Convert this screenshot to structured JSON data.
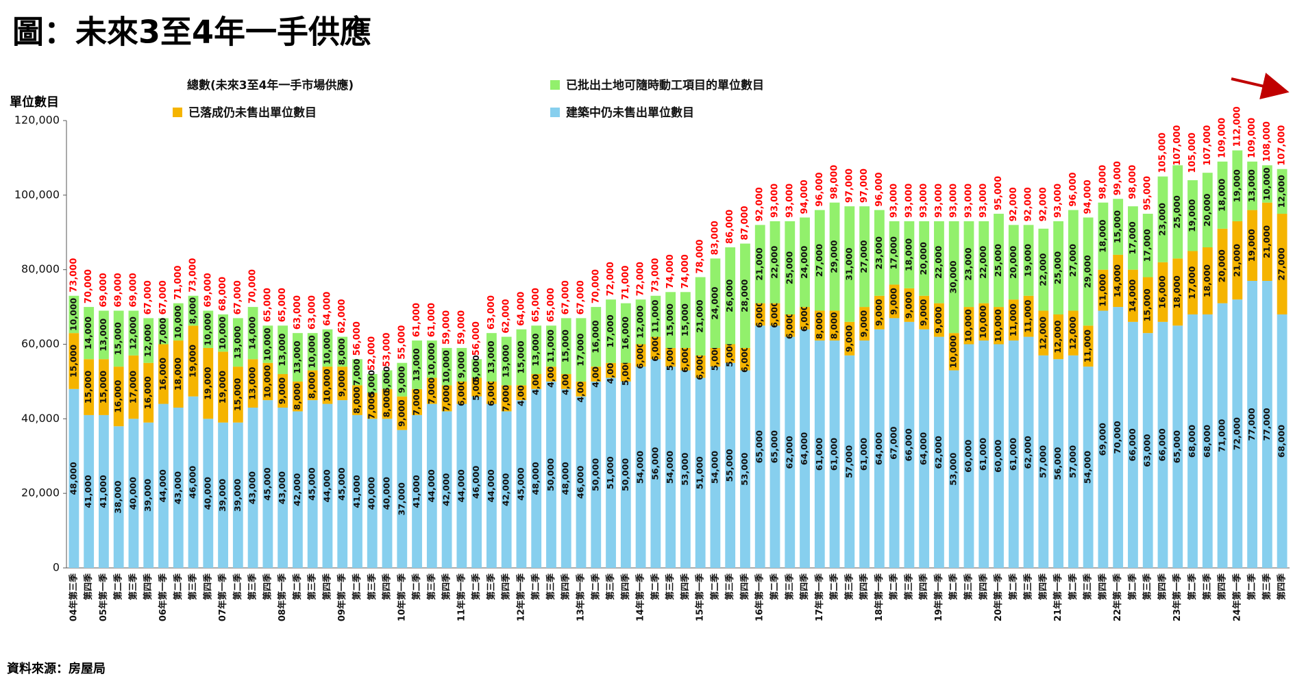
{
  "chart_data": {
    "type": "stacked_bar",
    "title": "圖：未來3至4年一手供應",
    "y_label": "單位數目",
    "source": "資料來源：房屋局",
    "categories": [
      "04年第三季",
      "第四季",
      "05年第一季",
      "第二季",
      "第三季",
      "第四季",
      "06年第一季",
      "第二季",
      "第三季",
      "第四季",
      "07年第一季",
      "第二季",
      "第三季",
      "第四季",
      "08年第一季",
      "第二季",
      "第三季",
      "第四季",
      "09年第一季",
      "第二季",
      "第三季",
      "第四季",
      "10年第一季",
      "第二季",
      "第三季",
      "第四季",
      "11年第一季",
      "第二季",
      "第三季",
      "第四季",
      "12年第一季",
      "第二季",
      "第三季",
      "第四季",
      "13年第一季",
      "第二季",
      "第三季",
      "第四季",
      "14年第一季",
      "第二季",
      "第三季",
      "第四季",
      "15年第一季",
      "第二季",
      "第三季",
      "第四季",
      "16年第一季",
      "第二季",
      "第三季",
      "第四季",
      "17年第一季",
      "第二季",
      "第三季",
      "第四季",
      "18年第一季",
      "第二季",
      "第三季",
      "第四季",
      "19年第一季",
      "第二季",
      "第三季",
      "第四季",
      "20年第一季",
      "第二季",
      "第三季",
      "第四季",
      "21年第一季",
      "第二季",
      "第三季",
      "第四季",
      "22年第一季",
      "第二季",
      "第三季",
      "第四季",
      "23年第一季",
      "第二季",
      "第三季",
      "第四季",
      "24年第一季",
      "第二季",
      "第三季",
      "第四季"
    ],
    "series": [
      {
        "name": "建築中仍未售出單位數目",
        "color": "#87cfee",
        "values": [
          48000,
          41000,
          41000,
          38000,
          40000,
          39000,
          44000,
          43000,
          46000,
          40000,
          39000,
          39000,
          43000,
          45000,
          43000,
          42000,
          45000,
          44000,
          45000,
          41000,
          40000,
          40000,
          37000,
          41000,
          44000,
          42000,
          44000,
          46000,
          44000,
          42000,
          45000,
          48000,
          50000,
          48000,
          46000,
          50000,
          51000,
          50000,
          54000,
          56000,
          54000,
          53000,
          51000,
          54000,
          55000,
          53000,
          65000,
          65000,
          62000,
          64000,
          61000,
          61000,
          57000,
          61000,
          64000,
          67000,
          66000,
          64000,
          62000,
          53000,
          60000,
          61000,
          60000,
          61000,
          62000,
          57000,
          56000,
          57000,
          54000,
          69000,
          70000,
          66000,
          63000,
          66000,
          65000,
          68000,
          68000,
          71000,
          72000,
          77000,
          77000,
          68000
        ],
        "value_labels": [
          "48,000",
          "41,000",
          "41,000",
          "38,000",
          "40,000",
          "39,000",
          "44,000",
          "43,000",
          "46,000",
          "40,000",
          "39,000",
          "39,000",
          "43,000",
          "45,000",
          "43,000",
          "42,000",
          "45,000",
          "44,000",
          "45,000",
          "41,000",
          "40,000",
          "40,000",
          "37,000",
          "41,000",
          "44,000",
          "42,000",
          "44,000",
          "46,000",
          "44,000",
          "42,000",
          "45,000",
          "48,000",
          "50,000",
          "48,000",
          "46,000",
          "50,000",
          "51,000",
          "50,000",
          "54,000",
          "56,000",
          "54,000",
          "53,000",
          "51,000",
          "54,000",
          "55,000",
          "53,000",
          "65,000",
          "65,000",
          "62,000",
          "64,000",
          "61,000",
          "61,000",
          "57,000",
          "61,000",
          "64,000",
          "67,000",
          "66,000",
          "64,000",
          "62,000",
          "53,000",
          "60,000",
          "61,000",
          "60,000",
          "61,000",
          "62,000",
          "57,000",
          "56,000",
          "57,000",
          "54,000",
          "69,000",
          "70,000",
          "66,000",
          "63,000",
          "66,000",
          "65,000",
          "68,000",
          "68,000",
          "71,000",
          "72,000",
          "77,000",
          "77,000",
          "68,000"
        ]
      },
      {
        "name": "已落成仍未售出單位數目",
        "color": "#f5b400",
        "values": [
          15000,
          15000,
          15000,
          16000,
          17000,
          16000,
          16000,
          18000,
          19000,
          19000,
          19000,
          15000,
          13000,
          10000,
          9000,
          8000,
          8000,
          10000,
          9000,
          8000,
          7000,
          8000,
          9000,
          7000,
          7000,
          7000,
          6000,
          5000,
          6000,
          7000,
          4000,
          4000,
          4000,
          4000,
          4000,
          4000,
          4000,
          5000,
          6000,
          6000,
          5000,
          6000,
          6000,
          5000,
          5000,
          6000,
          6000,
          6000,
          6000,
          6000,
          8000,
          8000,
          9000,
          9000,
          9000,
          9000,
          9000,
          9000,
          9000,
          10000,
          10000,
          10000,
          10000,
          11000,
          11000,
          12000,
          12000,
          12000,
          11000,
          11000,
          14000,
          14000,
          15000,
          16000,
          18000,
          17000,
          18000,
          20000,
          21000,
          19000,
          21000,
          27000
        ],
        "value_labels": [
          "15,000",
          "15,000",
          "15,000",
          "16,000",
          "17,000",
          "16,000",
          "16,000",
          "18,000",
          "19,000",
          "19,000",
          "19,000",
          "15,000",
          "13,000",
          "10,000",
          "9,000",
          "8,000",
          "8,000",
          "10,000",
          "9,000",
          "8,000",
          "7,000",
          "8,000",
          "9,000",
          "7,000",
          "7,000",
          "7,000",
          "6,000",
          "5,000",
          "6,000",
          "7,000",
          "4,000",
          "4,000",
          "4,000",
          "4,000",
          "4,000",
          "4,000",
          "4,000",
          "5,000",
          "6,000",
          "6,000",
          "5,000",
          "6,000",
          "6,000",
          "5,000",
          "5,000",
          "6,000",
          "6,000",
          "6,000",
          "6,000",
          "6,000",
          "8,000",
          "8,000",
          "9,000",
          "9,000",
          "9,000",
          "9,000",
          "9,000",
          "9,000",
          "9,000",
          "10,000",
          "10,000",
          "10,000",
          "10,000",
          "11,000",
          "11,000",
          "12,000",
          "12,000",
          "12,000",
          "11,000",
          "11,000",
          "14,000",
          "14,000",
          "15,000",
          "16,000",
          "18,000",
          "17,000",
          "18,000",
          "20,000",
          "21,000",
          "19,000",
          "21,000",
          "27,000"
        ]
      },
      {
        "name": "已批出土地可隨時動工項目的單位數目",
        "color": "#92f06c",
        "values": [
          10000,
          14000,
          13000,
          15000,
          12000,
          12000,
          7000,
          10000,
          8000,
          10000,
          10000,
          13000,
          14000,
          10000,
          13000,
          13000,
          10000,
          10000,
          8000,
          7000,
          5000,
          5000,
          9000,
          13000,
          10000,
          10000,
          9000,
          5000,
          13000,
          13000,
          15000,
          13000,
          11000,
          15000,
          17000,
          16000,
          17000,
          16000,
          12000,
          11000,
          15000,
          15000,
          21000,
          24000,
          26000,
          28000,
          21000,
          22000,
          25000,
          24000,
          27000,
          29000,
          31000,
          27000,
          23000,
          17000,
          18000,
          20000,
          22000,
          30000,
          23000,
          22000,
          25000,
          20000,
          19000,
          22000,
          25000,
          27000,
          29000,
          18000,
          15000,
          17000,
          17000,
          23000,
          25000,
          19000,
          20000,
          18000,
          19000,
          13000,
          10000,
          12000
        ],
        "value_labels": [
          "10,000",
          "14,000",
          "13,000",
          "15,000",
          "12,000",
          "12,000",
          "7,000",
          "10,000",
          "8,000",
          "10,000",
          "10,000",
          "13,000",
          "14,000",
          "10,000",
          "13,000",
          "13,000",
          "10,000",
          "10,000",
          "8,000",
          "7,000",
          "5,000",
          "5,000",
          "9,000",
          "13,000",
          "10,000",
          "10,000",
          "9,000",
          "5,000",
          "13,000",
          "13,000",
          "15,000",
          "13,000",
          "11,000",
          "15,000",
          "17,000",
          "16,000",
          "17,000",
          "16,000",
          "12,000",
          "11,000",
          "15,000",
          "15,000",
          "21,000",
          "24,000",
          "26,000",
          "28,000",
          "21,000",
          "22,000",
          "25,000",
          "24,000",
          "27,000",
          "29,000",
          "31,000",
          "27,000",
          "23,000",
          "17,000",
          "18,000",
          "20,000",
          "22,000",
          "30,000",
          "23,000",
          "22,000",
          "25,000",
          "20,000",
          "19,000",
          "22,000",
          "25,000",
          "27,000",
          "29,000",
          "18,000",
          "15,000",
          "17,000",
          "17,000",
          "23,000",
          "25,000",
          "19,000",
          "20,000",
          "18,000",
          "19,000",
          "13,000",
          "10,000",
          "12,000"
        ]
      }
    ],
    "total": {
      "name": "總數(未來3至4年一手市場供應)",
      "color": "#ff0000",
      "values": [
        73000,
        70000,
        69000,
        69000,
        69000,
        67000,
        67000,
        71000,
        73000,
        69000,
        68000,
        67000,
        70000,
        65000,
        65000,
        63000,
        63000,
        64000,
        62000,
        56000,
        52000,
        53000,
        55000,
        61000,
        61000,
        59000,
        59000,
        56000,
        63000,
        62000,
        64000,
        65000,
        65000,
        67000,
        67000,
        70000,
        72000,
        71000,
        72000,
        73000,
        74000,
        74000,
        78000,
        83000,
        86000,
        87000,
        92000,
        93000,
        93000,
        94000,
        96000,
        98000,
        97000,
        97000,
        96000,
        93000,
        93000,
        93000,
        93000,
        93000,
        93000,
        93000,
        95000,
        92000,
        92000,
        92000,
        93000,
        96000,
        94000,
        98000,
        99000,
        98000,
        95000,
        105000,
        107000,
        105000,
        107000,
        109000,
        112000,
        109000,
        108000,
        107000
      ],
      "value_labels": [
        "73,000",
        "70,000",
        "69,000",
        "69,000",
        "69,000",
        "67,000",
        "67,000",
        "71,000",
        "73,000",
        "69,000",
        "68,000",
        "67,000",
        "70,000",
        "65,000",
        "65,000",
        "63,000",
        "63,000",
        "64,000",
        "62,000",
        "56,000",
        "52,000",
        "53,000",
        "55,000",
        "61,000",
        "61,000",
        "59,000",
        "59,000",
        "56,000",
        "63,000",
        "62,000",
        "64,000",
        "65,000",
        "65,000",
        "67,000",
        "67,000",
        "70,000",
        "72,000",
        "71,000",
        "72,000",
        "73,000",
        "74,000",
        "74,000",
        "78,000",
        "83,000",
        "86,000",
        "87,000",
        "92,000",
        "93,000",
        "93,000",
        "94,000",
        "96,000",
        "98,000",
        "97,000",
        "97,000",
        "96,000",
        "93,000",
        "93,000",
        "93,000",
        "93,000",
        "93,000",
        "93,000",
        "93,000",
        "95,000",
        "92,000",
        "92,000",
        "92,000",
        "93,000",
        "96,000",
        "94,000",
        "98,000",
        "99,000",
        "98,000",
        "95,000",
        "105,000",
        "107,000",
        "105,000",
        "107,000",
        "109,000",
        "112,000",
        "109,000",
        "108,000",
        "107,000"
      ]
    },
    "ylim": [
      0,
      120000
    ],
    "yticks": [
      0,
      {
        "value": 20000,
        "label": "20,000"
      },
      {
        "value": 40000,
        "label": "40,000"
      },
      {
        "value": 60000,
        "label": "60,000"
      },
      {
        "value": 80000,
        "label": "80,000"
      },
      {
        "value": 100000,
        "label": "100,000"
      },
      {
        "value": 120000,
        "label": "120,000"
      }
    ]
  }
}
